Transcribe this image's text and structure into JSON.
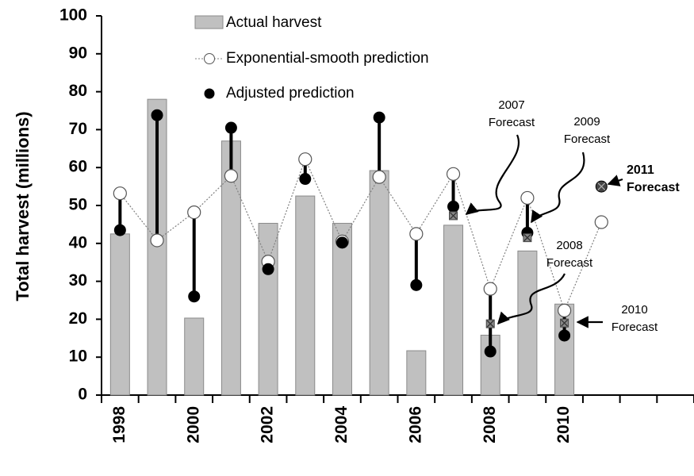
{
  "chart_data": {
    "type": "combo",
    "y_label": "Total harvest (millions)",
    "categories": [
      "1998",
      null,
      "2000",
      null,
      "2002",
      null,
      "2004",
      null,
      "2006",
      null,
      "2008",
      null,
      "2010",
      null,
      null,
      null
    ],
    "ylim": [
      0,
      100
    ],
    "yticks": [
      0,
      10,
      20,
      30,
      40,
      50,
      60,
      70,
      80,
      90,
      100
    ],
    "series": [
      {
        "name": "Actual harvest",
        "kind": "bar",
        "color": "#c0c0c0",
        "values": [
          42.5,
          78,
          20.3,
          67,
          45.3,
          52.5,
          45.3,
          59.2,
          11.7,
          44.8,
          15.8,
          38,
          24,
          null,
          null,
          null
        ]
      },
      {
        "name": "Exponential-smooth prediction",
        "kind": "line",
        "color": "#808080",
        "values": [
          53.2,
          40.8,
          48.2,
          57.8,
          35.2,
          62.2,
          40.5,
          57.5,
          42.5,
          58.3,
          28,
          52,
          22.3,
          45.6,
          null,
          null
        ]
      },
      {
        "name": "Adjusted prediction",
        "kind": "scatter",
        "color": "#000000",
        "values": [
          43.5,
          73.8,
          26,
          70.5,
          33.2,
          57,
          40.2,
          73.2,
          29,
          49.7,
          11.5,
          42.8,
          15.7,
          null,
          null,
          null
        ]
      }
    ],
    "forecast_values": [
      null,
      null,
      null,
      null,
      null,
      null,
      null,
      null,
      null,
      47.3,
      18.8,
      41.5,
      19,
      55,
      null,
      null
    ],
    "annotations": [
      {
        "text": "2007 Forecast"
      },
      {
        "text": "2009 Forecast"
      },
      {
        "text": "2011 Forecast"
      },
      {
        "text": "2008 Forecast"
      },
      {
        "text": "2010 Forecast"
      }
    ]
  }
}
